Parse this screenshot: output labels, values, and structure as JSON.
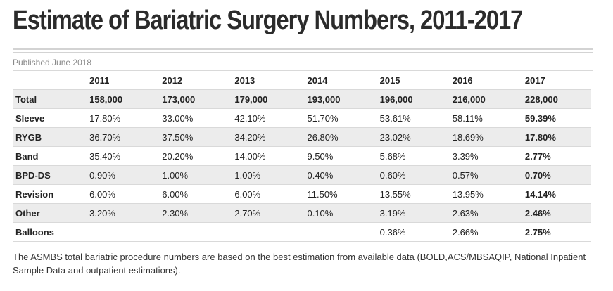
{
  "title": "Estimate of Bariatric Surgery Numbers, 2011-2017",
  "published": "Published June 2018",
  "table": {
    "columns": [
      "2011",
      "2012",
      "2013",
      "2014",
      "2015",
      "2016",
      "2017"
    ],
    "rows": [
      {
        "label": "Total",
        "values": [
          "158,000",
          "173,000",
          "179,000",
          "193,000",
          "196,000",
          "216,000",
          "228,000"
        ]
      },
      {
        "label": "Sleeve",
        "values": [
          "17.80%",
          "33.00%",
          "42.10%",
          "51.70%",
          "53.61%",
          "58.11%",
          "59.39%"
        ]
      },
      {
        "label": "RYGB",
        "values": [
          "36.70%",
          "37.50%",
          "34.20%",
          "26.80%",
          "23.02%",
          "18.69%",
          "17.80%"
        ]
      },
      {
        "label": "Band",
        "values": [
          "35.40%",
          "20.20%",
          "14.00%",
          "9.50%",
          "5.68%",
          "3.39%",
          "2.77%"
        ]
      },
      {
        "label": "BPD-DS",
        "values": [
          "0.90%",
          "1.00%",
          "1.00%",
          "0.40%",
          "0.60%",
          "0.57%",
          "0.70%"
        ]
      },
      {
        "label": "Revision",
        "values": [
          "6.00%",
          "6.00%",
          "6.00%",
          "11.50%",
          "13.55%",
          "13.95%",
          "14.14%"
        ]
      },
      {
        "label": "Other",
        "values": [
          "3.20%",
          "2.30%",
          "2.70%",
          "0.10%",
          "3.19%",
          "2.63%",
          "2.46%"
        ]
      },
      {
        "label": "Balloons",
        "values": [
          "—",
          "—",
          "—",
          "—",
          "0.36%",
          "2.66%",
          "2.75%"
        ]
      }
    ]
  },
  "footnote": "The ASMBS total bariatric procedure numbers are based on the best estimation from available data (BOLD,ACS/MBSAQIP, National Inpatient Sample Data and outpatient estimations)."
}
